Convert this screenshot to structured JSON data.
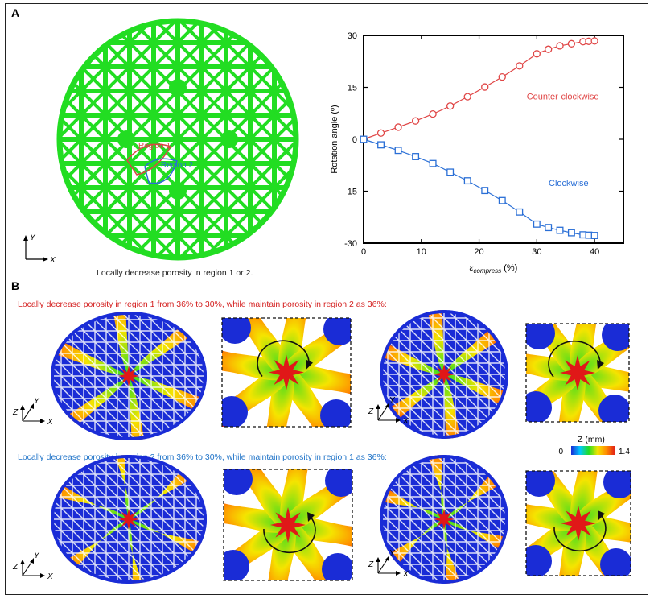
{
  "panel_a": {
    "label": "A",
    "region1_label": "Region 1",
    "region2_label": "Region 2",
    "axis_y": "Y",
    "axis_x": "X",
    "caption": "Locally decrease porosity in region 1 or 2.",
    "lattice_color": "#22dd22"
  },
  "chart_data": {
    "type": "line",
    "title": "",
    "xlabel_main": "ε",
    "xlabel_sub": "compress",
    "xlabel_unit": " (%)",
    "ylabel": "Rotation angle (º)",
    "xlim": [
      0,
      45
    ],
    "ylim": [
      -30,
      30
    ],
    "xticks": [
      "0",
      "10",
      "20",
      "30",
      "40"
    ],
    "yticks": [
      "-30",
      "-15",
      "0",
      "15",
      "30"
    ],
    "series": [
      {
        "name": "Counter-clockwise",
        "color": "#e04646",
        "marker": "circle",
        "x": [
          0,
          3,
          6,
          9,
          12,
          15,
          18,
          21,
          24,
          27,
          30,
          32,
          34,
          36,
          38,
          39,
          40
        ],
        "y": [
          0,
          1.8,
          3.5,
          5.3,
          7.3,
          9.6,
          12.3,
          15.1,
          18.0,
          21.2,
          24.7,
          26.0,
          27.0,
          27.6,
          28.2,
          28.3,
          28.4
        ]
      },
      {
        "name": "Clockwise",
        "color": "#2a6fd6",
        "marker": "square",
        "x": [
          0,
          3,
          6,
          9,
          12,
          15,
          18,
          21,
          24,
          27,
          30,
          32,
          34,
          36,
          38,
          39,
          40
        ],
        "y": [
          0,
          -1.6,
          -3.2,
          -5.0,
          -7.0,
          -9.5,
          -12.0,
          -14.8,
          -17.7,
          -21.0,
          -24.5,
          -25.5,
          -26.3,
          -27.0,
          -27.6,
          -27.7,
          -27.8
        ]
      }
    ]
  },
  "panel_b": {
    "label": "B",
    "caption_row1": "Locally decrease porosity in region 1 from 36% to 30%, while maintain porosity in region 2 as 36%:",
    "caption_row2": "Locally decrease porosity in region 2 from 36% to 30%, while maintain porosity in region 1 as 36%:",
    "axis_z": "Z",
    "axis_y": "Y",
    "axis_x": "X",
    "colorbar_title": "Z (mm)",
    "colorbar_min": "0",
    "colorbar_max": "1.4",
    "colors": [
      "#1a2cd6",
      "#00c8ff",
      "#22dd22",
      "#f5e400",
      "#ff8a00",
      "#e01818"
    ]
  }
}
